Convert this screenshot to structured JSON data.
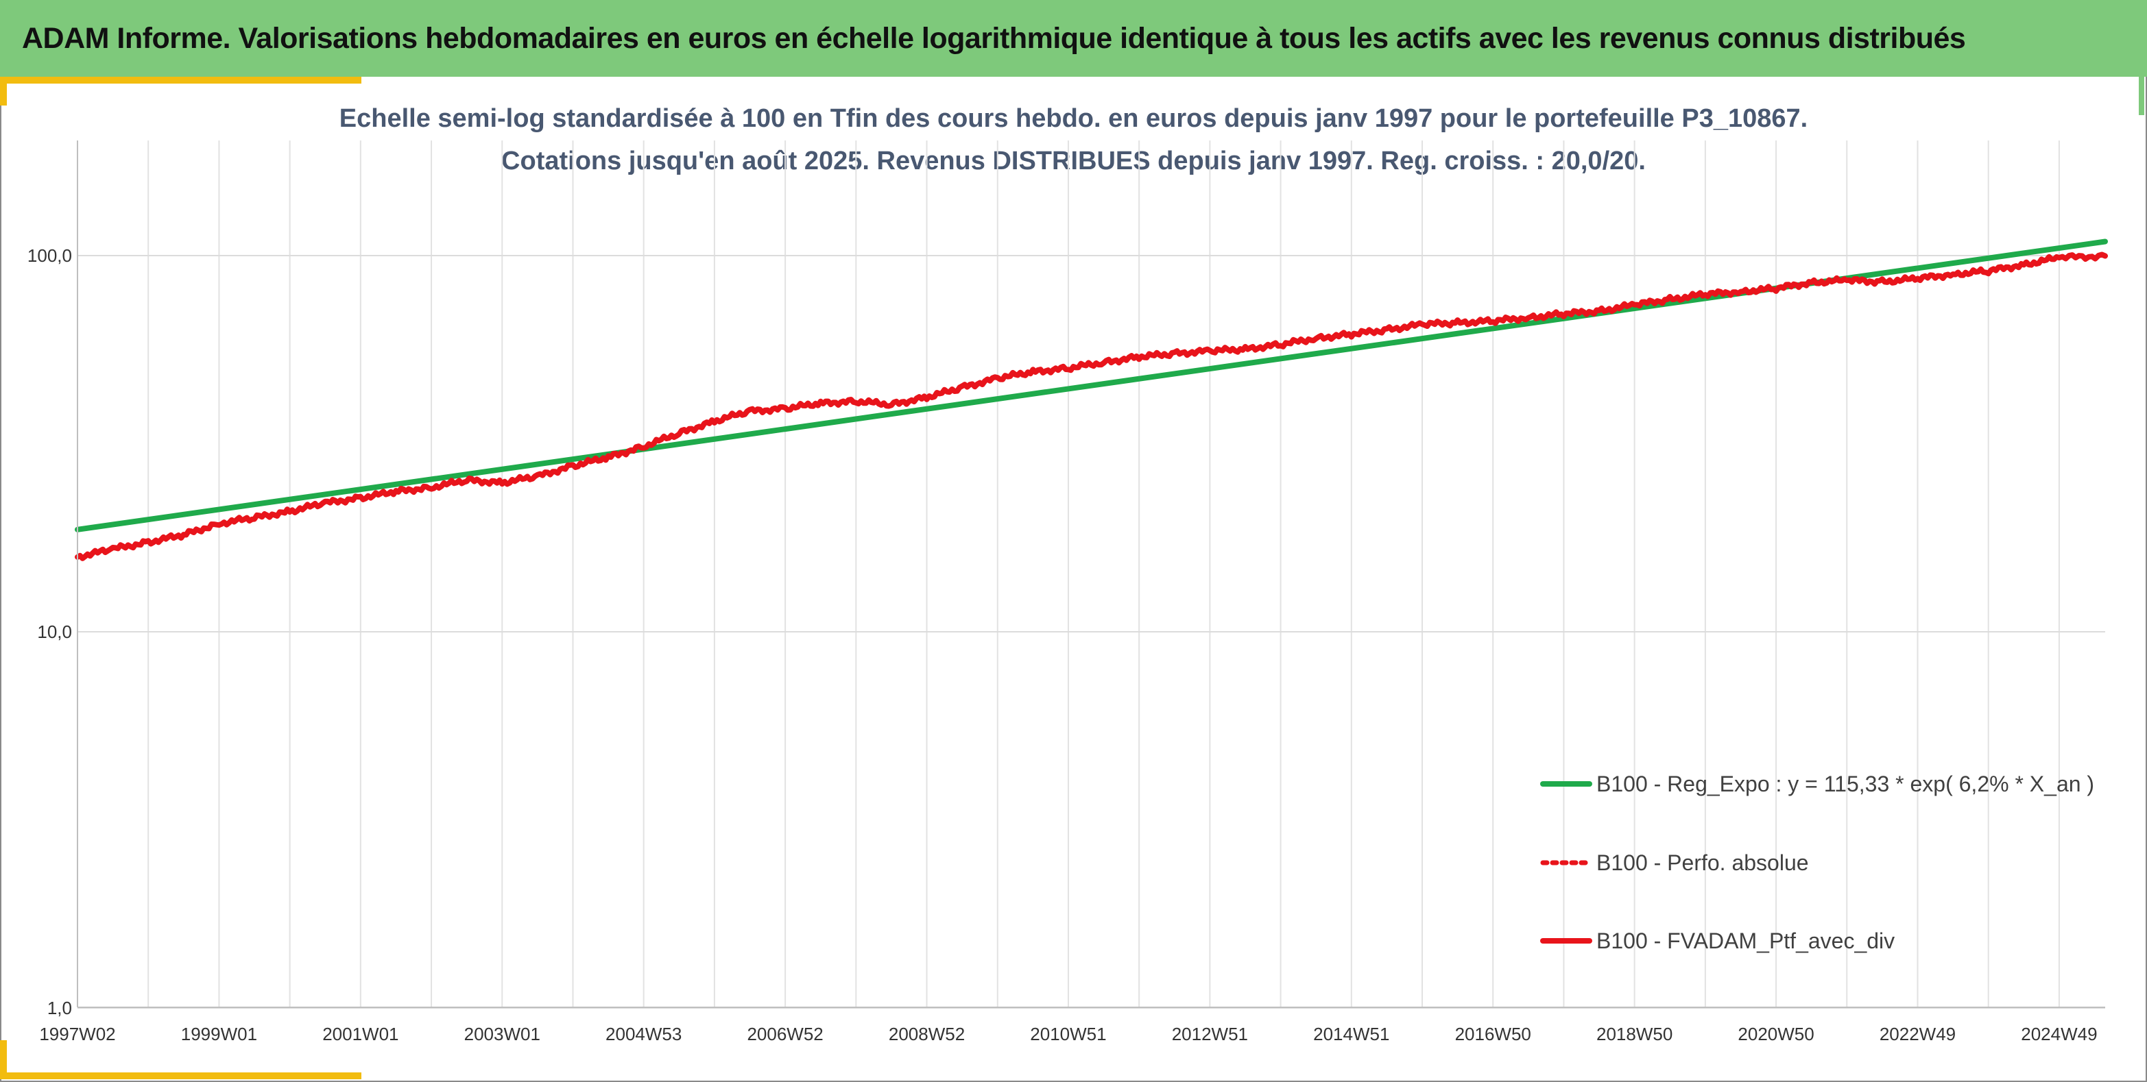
{
  "header": {
    "title": "ADAM Informe. Valorisations hebdomadaires en euros en échelle logarithmique identique à tous les actifs avec les revenus connus distribués"
  },
  "chart_data": {
    "type": "line",
    "title_line1": "Echelle semi-log standardisée à 100 en Tfin des cours hebdo. en euros depuis janv 1997 pour le portefeuille P3_10867.",
    "title_line2": "Cotations jusqu'en août 2025. Revenus DISTRIBUES depuis janv 1997. Reg. croiss. : 20,0/20.",
    "y_scale": "log",
    "ylim": [
      1,
      200
    ],
    "y_ticks": [
      {
        "value": 1,
        "label": "1,0"
      },
      {
        "value": 10,
        "label": "10,0"
      },
      {
        "value": 100,
        "label": "100,0"
      }
    ],
    "xlim": [
      1997.0,
      2025.65
    ],
    "x_ticks": [
      {
        "value": 1997.0,
        "label": "1997W02"
      },
      {
        "value": 1999.0,
        "label": "1999W01"
      },
      {
        "value": 2001.0,
        "label": "2001W01"
      },
      {
        "value": 2003.0,
        "label": "2003W01"
      },
      {
        "value": 2005.0,
        "label": "2004W53"
      },
      {
        "value": 2007.0,
        "label": "2006W52"
      },
      {
        "value": 2009.0,
        "label": "2008W52"
      },
      {
        "value": 2011.0,
        "label": "2010W51"
      },
      {
        "value": 2013.0,
        "label": "2012W51"
      },
      {
        "value": 2015.0,
        "label": "2014W51"
      },
      {
        "value": 2017.0,
        "label": "2016W50"
      },
      {
        "value": 2019.0,
        "label": "2018W50"
      },
      {
        "value": 2021.0,
        "label": "2020W50"
      },
      {
        "value": 2023.0,
        "label": "2022W49"
      },
      {
        "value": 2025.0,
        "label": "2024W49"
      }
    ],
    "grid": true,
    "legend_position": "bottom-right",
    "series": [
      {
        "name": "B100 - Reg_Expo : y = 115,33 * exp( 6,2% *  X_an )",
        "color": "#1faa4b",
        "style": "solid",
        "x": [
          1997.0,
          2025.65
        ],
        "y": [
          18.7,
          109
        ]
      },
      {
        "name": "B100 - Perfo. absolue",
        "color": "#e8141b",
        "style": "dotted",
        "x": [],
        "y": []
      },
      {
        "name": "B100 - FVADAM_Ptf_avec_div",
        "color": "#e8141b",
        "style": "solid",
        "x": [
          1997.0,
          1997.5,
          1998.0,
          1998.5,
          1999.0,
          1999.5,
          2000.0,
          2000.5,
          2001.0,
          2001.5,
          2002.0,
          2002.5,
          2003.0,
          2003.5,
          2004.0,
          2004.5,
          2005.0,
          2005.5,
          2006.0,
          2006.5,
          2007.0,
          2007.5,
          2008.0,
          2008.5,
          2009.0,
          2009.5,
          2010.0,
          2010.5,
          2011.0,
          2011.5,
          2012.0,
          2012.5,
          2013.0,
          2013.5,
          2014.0,
          2014.5,
          2015.0,
          2015.5,
          2016.0,
          2016.5,
          2017.0,
          2017.5,
          2018.0,
          2018.5,
          2019.0,
          2019.5,
          2020.0,
          2020.5,
          2021.0,
          2021.5,
          2022.0,
          2022.5,
          2023.0,
          2023.5,
          2024.0,
          2024.5,
          2025.0,
          2025.65
        ],
        "y": [
          15.8,
          16.6,
          17.3,
          18.1,
          19.4,
          20.1,
          20.9,
          22.0,
          22.7,
          23.6,
          24.2,
          25.3,
          24.9,
          25.9,
          27.6,
          29.1,
          31.1,
          33.7,
          36.3,
          38.6,
          39.2,
          40.5,
          41.0,
          40.2,
          42.0,
          44.6,
          47.2,
          49.1,
          50.2,
          52.0,
          53.8,
          54.9,
          55.8,
          56.4,
          58.0,
          60.3,
          61.8,
          63.5,
          65.6,
          66.3,
          67.0,
          68.4,
          70.0,
          71.2,
          74.0,
          76.5,
          78.9,
          80.2,
          81.8,
          84.8,
          86.0,
          85.2,
          86.9,
          89.2,
          91.0,
          94.6,
          98.8,
          99.8
        ]
      }
    ]
  }
}
